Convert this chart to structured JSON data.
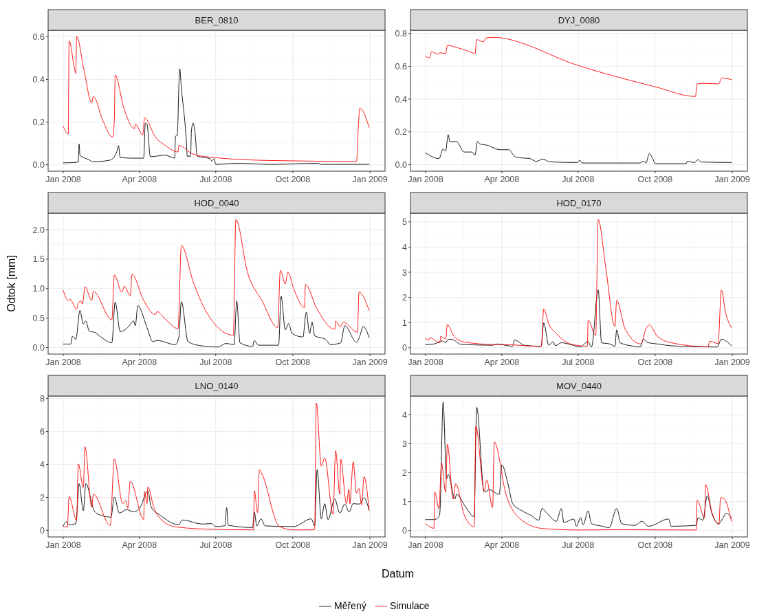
{
  "chart_data": [
    {
      "type": "line",
      "title": "BER_0810",
      "xlabel": "Datum",
      "legend": "bottom",
      "grid": true,
      "xlim": [
        "2007-12-14",
        "2009-01-19"
      ],
      "xticks": [
        {
          "value": "2008-01-01",
          "label": "Jan 2008"
        },
        {
          "value": "2008-04-01",
          "label": "Apr 2008"
        },
        {
          "value": "2008-07-01",
          "label": "Jul 2008"
        },
        {
          "value": "2008-10-01",
          "label": "Oct 2008"
        },
        {
          "value": "2009-01-01",
          "label": "Jan 2009"
        }
      ],
      "ylim": [
        -0.03,
        0.63
      ],
      "yticks": [
        {
          "value": 0,
          "label": "0.0"
        },
        0.2,
        0.4,
        0.6
      ],
      "series": [
        {
          "name": "Měřený",
          "color": "#000000",
          "x": [
            "2008-01-01",
            "2008-01-16",
            "2008-01-19",
            "2008-01-20",
            "2008-01-21",
            "2008-02-01",
            "2008-02-05",
            "2008-02-26",
            "2008-03-05",
            "2008-03-07",
            "2008-03-09",
            "2008-03-24",
            "2008-04-06",
            "2008-04-08",
            "2008-04-10",
            "2008-04-14",
            "2008-05-02",
            "2008-05-13",
            "2008-05-14",
            "2008-05-16",
            "2008-05-19",
            "2008-05-21",
            "2008-05-27",
            "2008-05-28",
            "2008-06-01",
            "2008-06-02",
            "2008-06-04",
            "2008-06-06",
            "2008-06-09",
            "2008-06-24",
            "2008-06-26",
            "2008-06-29",
            "2008-07-01",
            "2008-07-26",
            "2008-09-05",
            "2008-10-31",
            "2008-11-04",
            "2008-12-31"
          ],
          "values": [
            0.009,
            0.011,
            0.014,
            0.097,
            0.045,
            0.023,
            0.014,
            0.022,
            0.062,
            0.09,
            0.034,
            0.031,
            0.031,
            0.195,
            0.19,
            0.038,
            0.045,
            0.031,
            0.134,
            0.137,
            0.45,
            0.36,
            0.106,
            0.04,
            0.04,
            0.16,
            0.195,
            0.16,
            0.04,
            0.029,
            0.018,
            0.029,
            0.002,
            0.007,
            0.002,
            0.007,
            0.002,
            0.002
          ]
        },
        {
          "name": "Simulace",
          "color": "#ff0000",
          "x": [
            "2008-01-01",
            "2008-01-07",
            "2008-01-08",
            "2008-01-15",
            "2008-01-16",
            "2008-01-17",
            "2008-01-26",
            "2008-02-04",
            "2008-02-06",
            "2008-02-17",
            "2008-02-29",
            "2008-03-02",
            "2008-03-03",
            "2008-03-13",
            "2008-03-26",
            "2008-03-27",
            "2008-04-05",
            "2008-04-07",
            "2008-04-20",
            "2008-05-02",
            "2008-05-17",
            "2008-05-18",
            "2008-06-04",
            "2008-07-01",
            "2008-09-05",
            "2008-12-16",
            "2008-12-18",
            "2008-12-20",
            "2008-12-31"
          ],
          "values": [
            0.18,
            0.144,
            0.58,
            0.44,
            0.427,
            0.6,
            0.44,
            0.29,
            0.32,
            0.21,
            0.13,
            0.21,
            0.42,
            0.27,
            0.17,
            0.19,
            0.14,
            0.22,
            0.13,
            0.09,
            0.06,
            0.09,
            0.05,
            0.033,
            0.02,
            0.016,
            0.17,
            0.265,
            0.175
          ]
        }
      ]
    },
    {
      "type": "line",
      "title": "DYJ_0080",
      "grid": true,
      "xlim": [
        "2007-12-14",
        "2009-01-19"
      ],
      "xticks": [
        {
          "value": "2008-01-01",
          "label": "Jan 2008"
        },
        {
          "value": "2008-04-01",
          "label": "Apr 2008"
        },
        {
          "value": "2008-07-01",
          "label": "Jul 2008"
        },
        {
          "value": "2008-10-01",
          "label": "Oct 2008"
        },
        {
          "value": "2009-01-01",
          "label": "Jan 2009"
        }
      ],
      "ylim": [
        -0.04,
        0.82
      ],
      "yticks": [
        {
          "value": 0,
          "label": "0.0"
        },
        0.2,
        0.4,
        0.6,
        0.8
      ],
      "series": [
        {
          "color": "#000000",
          "x": [
            "2008-01-01",
            "2008-01-17",
            "2008-01-22",
            "2008-01-25",
            "2008-01-28",
            "2008-01-30",
            "2008-02-07",
            "2008-02-16",
            "2008-02-25",
            "2008-02-29",
            "2008-03-03",
            "2008-03-06",
            "2008-03-14",
            "2008-03-30",
            "2008-04-09",
            "2008-04-17",
            "2008-04-24",
            "2008-05-04",
            "2008-05-12",
            "2008-05-20",
            "2008-05-28",
            "2008-06-30",
            "2008-07-03",
            "2008-07-06",
            "2008-09-12",
            "2008-09-17",
            "2008-09-20",
            "2008-09-24",
            "2008-09-28",
            "2008-10-01",
            "2008-11-07",
            "2008-11-08",
            "2008-11-17",
            "2008-11-21",
            "2008-11-25",
            "2008-12-31"
          ],
          "values": [
            0.072,
            0.037,
            0.095,
            0.084,
            0.183,
            0.141,
            0.141,
            0.077,
            0.077,
            0.058,
            0.141,
            0.126,
            0.119,
            0.091,
            0.091,
            0.048,
            0.041,
            0.038,
            0.02,
            0.034,
            0.017,
            0.013,
            0.027,
            0.01,
            0.01,
            0.02,
            0.01,
            0.067,
            0.038,
            0.006,
            0.006,
            0.02,
            0.013,
            0.03,
            0.016,
            0.013
          ]
        },
        {
          "color": "#ff0000",
          "x": [
            "2008-01-01",
            "2008-01-06",
            "2008-01-08",
            "2008-01-16",
            "2008-01-18",
            "2008-01-25",
            "2008-01-27",
            "2008-02-07",
            "2008-02-28",
            "2008-02-29",
            "2008-03-02",
            "2008-03-10",
            "2008-03-13",
            "2008-03-26",
            "2008-04-01",
            "2008-07-01",
            "2008-10-01",
            "2008-11-18",
            "2008-11-20",
            "2008-11-27",
            "2008-12-16",
            "2008-12-19",
            "2008-12-31"
          ],
          "values": [
            0.661,
            0.652,
            0.689,
            0.674,
            0.683,
            0.678,
            0.728,
            0.715,
            0.678,
            0.676,
            0.763,
            0.749,
            0.773,
            0.777,
            0.773,
            0.605,
            0.475,
            0.416,
            0.492,
            0.496,
            0.493,
            0.529,
            0.519
          ]
        }
      ]
    },
    {
      "type": "line",
      "title": "HOD_0040",
      "ylabel": "Odtok [mm]",
      "grid": true,
      "xlim": [
        "2007-12-14",
        "2009-01-19"
      ],
      "xticks": [
        {
          "value": "2008-01-01",
          "label": "Jan 2008"
        },
        {
          "value": "2008-04-01",
          "label": "Apr 2008"
        },
        {
          "value": "2008-07-01",
          "label": "Jul 2008"
        },
        {
          "value": "2008-10-01",
          "label": "Oct 2008"
        },
        {
          "value": "2009-01-01",
          "label": "Jan 2009"
        }
      ],
      "ylim": [
        -0.11,
        2.28
      ],
      "yticks": [
        {
          "value": 0,
          "label": "0.0"
        },
        0.5,
        {
          "value": 1,
          "label": "1.0"
        },
        1.5,
        {
          "value": 2,
          "label": "2.0"
        }
      ],
      "series": [
        {
          "color": "#000000",
          "x": [
            "2008-01-01",
            "2008-01-10",
            "2008-01-12",
            "2008-01-16",
            "2008-01-21",
            "2008-01-25",
            "2008-01-28",
            "2008-02-01",
            "2008-02-07",
            "2008-02-15",
            "2008-02-28",
            "2008-03-03",
            "2008-03-09",
            "2008-03-18",
            "2008-03-25",
            "2008-03-27",
            "2008-03-30",
            "2008-04-10",
            "2008-04-17",
            "2008-04-22",
            "2008-05-14",
            "2008-05-18",
            "2008-05-21",
            "2008-05-29",
            "2008-06-14",
            "2008-07-04",
            "2008-07-13",
            "2008-07-23",
            "2008-07-26",
            "2008-07-30",
            "2008-08-14",
            "2008-08-16",
            "2008-08-21",
            "2008-09-14",
            "2008-09-17",
            "2008-09-22",
            "2008-09-26",
            "2008-09-30",
            "2008-10-13",
            "2008-10-17",
            "2008-10-21",
            "2008-10-24",
            "2008-10-27",
            "2008-11-09",
            "2008-11-15",
            "2008-11-27",
            "2008-12-02",
            "2008-12-16",
            "2008-12-20",
            "2008-12-24",
            "2008-12-31"
          ],
          "values": [
            0.06,
            0.06,
            0.19,
            0.14,
            0.63,
            0.4,
            0.45,
            0.28,
            0.26,
            0.18,
            0.08,
            0.77,
            0.27,
            0.34,
            0.45,
            0.37,
            0.71,
            0.34,
            0.1,
            0.12,
            0.05,
            0.18,
            0.78,
            0.1,
            0.03,
            0.01,
            0.07,
            0.05,
            0.79,
            0.08,
            0.02,
            0.12,
            0.04,
            0.04,
            0.87,
            0.3,
            0.41,
            0.24,
            0.18,
            0.6,
            0.24,
            0.43,
            0.2,
            0.14,
            0.05,
            0.08,
            0.37,
            0.09,
            0.2,
            0.36,
            0.17
          ]
        },
        {
          "color": "#ff0000",
          "x": [
            "2008-01-01",
            "2008-01-07",
            "2008-01-09",
            "2008-01-17",
            "2008-01-19",
            "2008-01-22",
            "2008-01-24",
            "2008-01-27",
            "2008-02-04",
            "2008-02-06",
            "2008-02-28",
            "2008-03-02",
            "2008-03-11",
            "2008-03-14",
            "2008-03-21",
            "2008-03-23",
            "2008-04-06",
            "2008-04-20",
            "2008-04-22",
            "2008-05-02",
            "2008-05-17",
            "2008-05-21",
            "2008-06-04",
            "2008-06-20",
            "2008-07-22",
            "2008-07-25",
            "2008-08-08",
            "2008-08-25",
            "2008-09-13",
            "2008-09-16",
            "2008-09-22",
            "2008-09-25",
            "2008-10-02",
            "2008-10-15",
            "2008-10-16",
            "2008-10-29",
            "2008-11-20",
            "2008-11-21",
            "2008-11-27",
            "2008-11-30",
            "2008-12-17",
            "2008-12-19",
            "2008-12-31"
          ],
          "values": [
            0.97,
            0.8,
            0.82,
            0.65,
            0.76,
            0.79,
            0.74,
            1.03,
            0.8,
            0.95,
            0.47,
            1.23,
            0.94,
            1.04,
            0.88,
            1.24,
            0.8,
            0.56,
            0.61,
            0.48,
            0.32,
            1.73,
            1.12,
            0.6,
            0.21,
            2.17,
            1.27,
            0.8,
            0.34,
            1.31,
            1.08,
            1.28,
            1.0,
            0.68,
            1.07,
            0.68,
            0.31,
            0.45,
            0.35,
            0.43,
            0.26,
            0.94,
            0.63
          ]
        }
      ]
    },
    {
      "type": "line",
      "title": "HOD_0170",
      "grid": true,
      "xlim": [
        "2007-12-14",
        "2009-01-19"
      ],
      "xticks": [
        {
          "value": "2008-01-01",
          "label": "Jan 2008"
        },
        {
          "value": "2008-04-01",
          "label": "Apr 2008"
        },
        {
          "value": "2008-07-01",
          "label": "Jul 2008"
        },
        {
          "value": "2008-10-01",
          "label": "Oct 2008"
        },
        {
          "value": "2009-01-01",
          "label": "Jan 2009"
        }
      ],
      "ylim": [
        -0.25,
        5.35
      ],
      "yticks": [
        0,
        1,
        2,
        3,
        4,
        5
      ],
      "series": [
        {
          "color": "#000000",
          "x": [
            "2008-01-01",
            "2008-01-11",
            "2008-01-21",
            "2008-01-25",
            "2008-01-28",
            "2008-02-02",
            "2008-02-12",
            "2008-03-21",
            "2008-03-26",
            "2008-04-14",
            "2008-04-16",
            "2008-04-28",
            "2008-05-18",
            "2008-05-21",
            "2008-05-27",
            "2008-06-01",
            "2008-06-04",
            "2008-06-11",
            "2008-06-25",
            "2008-07-03",
            "2008-07-13",
            "2008-07-17",
            "2008-07-25",
            "2008-07-29",
            "2008-08-08",
            "2008-08-14",
            "2008-08-16",
            "2008-08-20",
            "2008-09-06",
            "2008-09-13",
            "2008-09-17",
            "2008-09-22",
            "2008-10-04",
            "2008-10-20",
            "2008-12-14",
            "2008-12-19",
            "2008-12-31"
          ],
          "values": [
            0.13,
            0.15,
            0.27,
            0.2,
            0.34,
            0.33,
            0.14,
            0.1,
            0.15,
            0.06,
            0.31,
            0.1,
            0.06,
            0.99,
            0.1,
            0.24,
            0.08,
            0.2,
            0.1,
            0.03,
            0.24,
            0.03,
            2.3,
            0.2,
            0.15,
            0.06,
            0.71,
            0.2,
            0.06,
            0.03,
            0.34,
            0.21,
            0.15,
            0.08,
            0.03,
            0.34,
            0.08
          ]
        },
        {
          "color": "#ff0000",
          "x": [
            "2008-01-01",
            "2008-01-05",
            "2008-01-06",
            "2008-01-18",
            "2008-01-19",
            "2008-01-25",
            "2008-01-27",
            "2008-02-04",
            "2008-02-16",
            "2008-03-24",
            "2008-04-01",
            "2008-05-09",
            "2008-05-18",
            "2008-05-21",
            "2008-05-27",
            "2008-06-05",
            "2008-06-22",
            "2008-07-12",
            "2008-07-13",
            "2008-07-22",
            "2008-07-25",
            "2008-08-03",
            "2008-08-14",
            "2008-08-16",
            "2008-08-26",
            "2008-09-14",
            "2008-09-20",
            "2008-09-24",
            "2008-10-03",
            "2008-10-20",
            "2008-12-03",
            "2008-12-05",
            "2008-12-15",
            "2008-12-19",
            "2008-12-24",
            "2008-12-31"
          ],
          "values": [
            0.37,
            0.31,
            0.4,
            0.2,
            0.45,
            0.35,
            0.92,
            0.45,
            0.23,
            0.13,
            0.13,
            0.06,
            0.05,
            1.54,
            0.95,
            0.57,
            0.15,
            0.06,
            1.09,
            0.5,
            5.09,
            3.18,
            0.85,
            1.88,
            0.76,
            0.15,
            0.76,
            0.91,
            0.48,
            0.2,
            0.04,
            0.26,
            0.17,
            2.29,
            1.4,
            0.8
          ]
        }
      ]
    },
    {
      "type": "line",
      "title": "LNO_0140",
      "grid": true,
      "xlim": [
        "2007-12-14",
        "2009-01-19"
      ],
      "xticks": [
        {
          "value": "2008-01-01",
          "label": "Jan 2008"
        },
        {
          "value": "2008-04-01",
          "label": "Apr 2008"
        },
        {
          "value": "2008-07-01",
          "label": "Jul 2008"
        },
        {
          "value": "2008-10-01",
          "label": "Oct 2008"
        },
        {
          "value": "2009-01-01",
          "label": "Jan 2009"
        }
      ],
      "ylim": [
        -0.4,
        8.15
      ],
      "yticks": [
        0,
        2,
        4,
        6,
        8
      ],
      "series": [
        {
          "color": "#000000",
          "x": [
            "2008-01-01",
            "2008-01-05",
            "2008-01-07",
            "2008-01-16",
            "2008-01-20",
            "2008-01-25",
            "2008-01-28",
            "2008-02-07",
            "2008-02-15",
            "2008-02-27",
            "2008-03-02",
            "2008-03-08",
            "2008-03-17",
            "2008-03-25",
            "2008-04-02",
            "2008-04-11",
            "2008-04-15",
            "2008-04-26",
            "2008-05-18",
            "2008-05-22",
            "2008-06-15",
            "2008-06-26",
            "2008-07-01",
            "2008-07-12",
            "2008-07-14",
            "2008-07-16",
            "2008-08-14",
            "2008-08-16",
            "2008-08-19",
            "2008-08-24",
            "2008-08-29",
            "2008-10-02",
            "2008-10-23",
            "2008-10-27",
            "2008-10-30",
            "2008-11-04",
            "2008-11-08",
            "2008-11-12",
            "2008-11-20",
            "2008-11-26",
            "2008-12-02",
            "2008-12-07",
            "2008-12-12",
            "2008-12-19",
            "2008-12-25",
            "2008-12-31"
          ],
          "values": [
            0.27,
            0.53,
            0.34,
            0.4,
            2.83,
            1.19,
            2.83,
            1.19,
            0.91,
            0.8,
            2.02,
            1.05,
            1.26,
            1.12,
            1.41,
            2.4,
            1.41,
            0.91,
            0.34,
            0.63,
            0.38,
            0.41,
            0.23,
            0.28,
            1.38,
            0.31,
            0.17,
            1.12,
            0.27,
            0.7,
            0.27,
            0.23,
            0.7,
            0.27,
            3.68,
            0.7,
            1.62,
            0.65,
            1.9,
            1.05,
            1.59,
            1.12,
            1.62,
            1.59,
            1.97,
            1.22
          ]
        },
        {
          "color": "#ff0000",
          "x": [
            "2008-01-01",
            "2008-01-06",
            "2008-01-08",
            "2008-01-17",
            "2008-01-19",
            "2008-01-25",
            "2008-01-27",
            "2008-02-04",
            "2008-02-06",
            "2008-02-26",
            "2008-03-02",
            "2008-03-12",
            "2008-03-16",
            "2008-03-18",
            "2008-03-21",
            "2008-04-06",
            "2008-04-07",
            "2008-04-10",
            "2008-04-11",
            "2008-04-18",
            "2008-04-26",
            "2008-05-15",
            "2008-07-01",
            "2008-08-15",
            "2008-08-16",
            "2008-08-20",
            "2008-08-22",
            "2008-08-24",
            "2008-09-15",
            "2008-10-02",
            "2008-10-21",
            "2008-10-27",
            "2008-10-29",
            "2008-11-04",
            "2008-11-08",
            "2008-11-18",
            "2008-11-21",
            "2008-11-26",
            "2008-11-27",
            "2008-12-04",
            "2008-12-07",
            "2008-12-08",
            "2008-12-12",
            "2008-12-16",
            "2008-12-19",
            "2008-12-22",
            "2008-12-25",
            "2008-12-31"
          ],
          "values": [
            0.24,
            0.2,
            2.05,
            0.6,
            4.03,
            2.61,
            5.07,
            1.41,
            2.19,
            0.3,
            4.32,
            1.62,
            1.8,
            1.34,
            2.97,
            0.67,
            2.36,
            1.62,
            2.64,
            1.41,
            0.7,
            0.2,
            0.06,
            0.03,
            2.4,
            1.08,
            3.68,
            3.54,
            0.23,
            0.03,
            0.03,
            0.06,
            7.73,
            3.89,
            4.39,
            0.98,
            4.82,
            2.19,
            4.32,
            1.62,
            2.5,
            1.62,
            4.15,
            2.26,
            2.54,
            1.55,
            3.25,
            1.22
          ]
        }
      ]
    },
    {
      "type": "line",
      "title": "MOV_0440",
      "grid": true,
      "xlim": [
        "2007-12-14",
        "2009-01-19"
      ],
      "xticks": [
        {
          "value": "2008-01-01",
          "label": "Jan 2008"
        },
        {
          "value": "2008-04-01",
          "label": "Apr 2008"
        },
        {
          "value": "2008-07-01",
          "label": "Jul 2008"
        },
        {
          "value": "2008-10-01",
          "label": "Oct 2008"
        },
        {
          "value": "2009-01-01",
          "label": "Jan 2009"
        }
      ],
      "ylim": [
        -0.22,
        4.65
      ],
      "yticks": [
        0,
        1,
        2,
        3,
        4
      ],
      "series": [
        {
          "color": "#000000",
          "x": [
            "2008-01-01",
            "2008-01-11",
            "2008-01-16",
            "2008-01-18",
            "2008-01-22",
            "2008-01-26",
            "2008-01-28",
            "2008-02-05",
            "2008-02-07",
            "2008-02-17",
            "2008-02-28",
            "2008-03-02",
            "2008-03-11",
            "2008-03-17",
            "2008-03-29",
            "2008-04-01",
            "2008-04-08",
            "2008-04-14",
            "2008-04-23",
            "2008-05-06",
            "2008-05-15",
            "2008-05-19",
            "2008-05-25",
            "2008-06-05",
            "2008-06-11",
            "2008-06-14",
            "2008-06-26",
            "2008-06-29",
            "2008-07-04",
            "2008-07-07",
            "2008-07-13",
            "2008-07-17",
            "2008-07-30",
            "2008-08-07",
            "2008-08-16",
            "2008-08-22",
            "2008-09-07",
            "2008-09-15",
            "2008-09-23",
            "2008-10-17",
            "2008-10-20",
            "2008-11-19",
            "2008-11-21",
            "2008-11-27",
            "2008-12-02",
            "2008-12-08",
            "2008-12-16",
            "2008-12-21",
            "2008-12-25",
            "2008-12-31"
          ],
          "values": [
            0.38,
            0.38,
            0.44,
            0.6,
            4.44,
            1.78,
            1.94,
            1.09,
            1.25,
            0.85,
            0.48,
            4.26,
            1.33,
            1.41,
            1.25,
            2.27,
            1.66,
            0.93,
            0.72,
            0.52,
            0.36,
            0.76,
            0.6,
            0.32,
            0.76,
            0.28,
            0.4,
            0.15,
            0.44,
            0.2,
            0.68,
            0.24,
            0.15,
            0.1,
            0.76,
            0.24,
            0.18,
            0.32,
            0.15,
            0.4,
            0.15,
            0.18,
            0.44,
            0.36,
            1.19,
            0.56,
            0.24,
            0.44,
            0.6,
            0.44
          ]
        },
        {
          "color": "#ff0000",
          "x": [
            "2008-01-01",
            "2008-01-11",
            "2008-01-12",
            "2008-01-17",
            "2008-01-20",
            "2008-01-25",
            "2008-01-27",
            "2008-02-03",
            "2008-02-06",
            "2008-02-16",
            "2008-02-28",
            "2008-03-01",
            "2008-03-11",
            "2008-03-14",
            "2008-03-21",
            "2008-03-23",
            "2008-04-06",
            "2008-04-23",
            "2008-05-20",
            "2008-07-01",
            "2008-08-16",
            "2008-11-19",
            "2008-11-20",
            "2008-11-29",
            "2008-11-30",
            "2008-12-08",
            "2008-12-16",
            "2008-12-18",
            "2008-12-21",
            "2008-12-31"
          ],
          "values": [
            0.23,
            0.08,
            1.33,
            0.76,
            2.33,
            1.33,
            2.98,
            1.09,
            1.62,
            0.55,
            0.13,
            3.61,
            1.37,
            1.74,
            0.8,
            3.06,
            1.25,
            0.4,
            0.07,
            0.02,
            0.03,
            0.02,
            1.05,
            0.44,
            1.59,
            0.6,
            0.21,
            1.13,
            1.13,
            0.32
          ]
        }
      ]
    }
  ]
}
